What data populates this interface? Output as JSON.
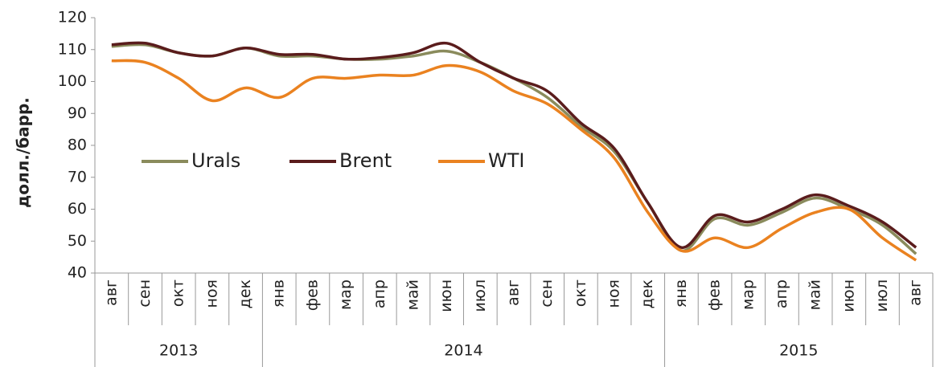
{
  "chart_data": {
    "type": "line",
    "y_label": "долл./барр.",
    "category_groups": [
      {
        "label": "2013",
        "categories": [
          "авг",
          "сен",
          "окт",
          "ноя",
          "дек"
        ]
      },
      {
        "label": "2014",
        "categories": [
          "янв",
          "фев",
          "мар",
          "апр",
          "май",
          "июн",
          "июл",
          "авг",
          "сен",
          "окт",
          "ноя",
          "дек"
        ]
      },
      {
        "label": "2015",
        "categories": [
          "янв",
          "фев",
          "мар",
          "апр",
          "май",
          "июн",
          "июл",
          "авг"
        ]
      }
    ],
    "series": [
      {
        "name": "Urals",
        "color": "#8a8b5c",
        "values": [
          111,
          111.5,
          109,
          108,
          110.5,
          108,
          108,
          107,
          107,
          108,
          109.5,
          106,
          101,
          95,
          86,
          78,
          62,
          47,
          57,
          55,
          59,
          63.5,
          60,
          55,
          46
        ]
      },
      {
        "name": "Brent",
        "color": "#5a1c1c",
        "values": [
          111.5,
          112,
          109,
          108,
          110.5,
          108.5,
          108.5,
          107,
          107.5,
          109,
          112,
          106,
          101,
          97,
          87,
          79,
          62,
          48,
          58,
          56,
          60,
          64.5,
          61,
          56,
          48
        ]
      },
      {
        "name": "WTI",
        "color": "#ea8220",
        "values": [
          106.5,
          106,
          101,
          94,
          98,
          95,
          101,
          101,
          102,
          102,
          105,
          103,
          97,
          93,
          85,
          76,
          59,
          47,
          51,
          48,
          54,
          59,
          60,
          51,
          44
        ]
      }
    ],
    "ylim": [
      40,
      120
    ],
    "yticks": [
      40,
      50,
      60,
      70,
      80,
      90,
      100,
      110,
      120
    ],
    "legend": "middle-left"
  }
}
